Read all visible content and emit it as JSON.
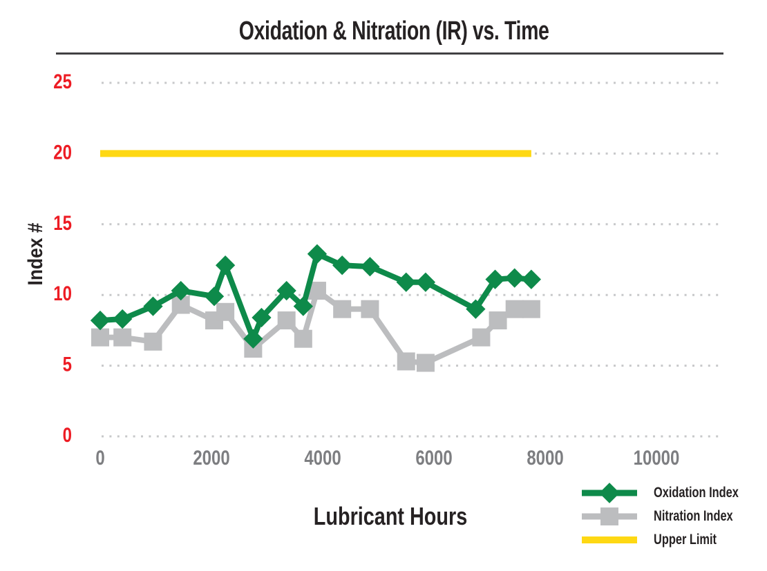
{
  "chart_data": {
    "type": "line",
    "title": "Oxidation & Nitration (IR) vs. Time",
    "xlabel": "Lubricant Hours",
    "ylabel": "Index #",
    "xlim": [
      0,
      11150
    ],
    "ylim": [
      0,
      25
    ],
    "xticks": [
      0,
      2000,
      4000,
      6000,
      8000,
      10000
    ],
    "yticks": [
      0,
      5,
      10,
      15,
      20,
      25
    ],
    "grid": "dotted-horizontal",
    "legend_position": "bottom-right",
    "colors": {
      "oxidation_green": "#0e8a4a",
      "nitration_gray": "#bcbdbf",
      "upper_limit_yellow": "#fed813",
      "y_tick_label": "#ed1c24",
      "x_tick_label": "#7d7e81",
      "grid_dots": "#c7c8ca",
      "text": "#262223",
      "title_rule": "#414042"
    },
    "series": [
      {
        "name": "Oxidation Index",
        "color": "#0e8a4a",
        "marker": "diamond",
        "marker_size": 20,
        "line_width": 8,
        "x": [
          0,
          400,
          950,
          1450,
          2050,
          2250,
          2750,
          2900,
          3350,
          3650,
          3900,
          4350,
          4850,
          5500,
          5850,
          6750,
          7100,
          7450,
          7750
        ],
        "y": [
          8.2,
          8.3,
          9.2,
          10.3,
          9.9,
          12.1,
          6.9,
          8.4,
          10.3,
          9.2,
          12.9,
          12.1,
          12.0,
          10.9,
          10.9,
          9.0,
          11.1,
          11.2,
          11.1
        ]
      },
      {
        "name": "Nitration Index",
        "color": "#bcbdbf",
        "marker": "square",
        "marker_size": 26,
        "line_width": 8,
        "x": [
          0,
          400,
          950,
          1450,
          2050,
          2250,
          2750,
          3350,
          3650,
          3900,
          4350,
          4850,
          5500,
          5850,
          6850,
          7150,
          7450,
          7750
        ],
        "y": [
          7.0,
          7.0,
          6.7,
          9.3,
          8.2,
          8.8,
          6.2,
          8.2,
          6.9,
          10.3,
          9.0,
          9.0,
          5.3,
          5.2,
          7.0,
          8.2,
          9.0,
          9.0
        ]
      },
      {
        "name": "Upper Limit",
        "color": "#fed813",
        "marker": "none",
        "marker_size": 0,
        "line_width": 10,
        "x": [
          0,
          7750
        ],
        "y": [
          20,
          20
        ]
      }
    ]
  }
}
